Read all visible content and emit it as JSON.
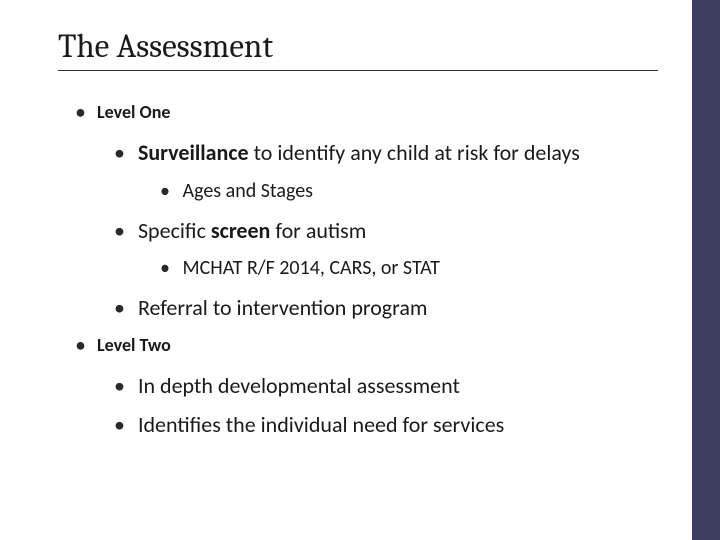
{
  "slide": {
    "title": "The Assessment",
    "title_color": "#1a1a1a",
    "title_fontsize": 33,
    "title_font": "Cambria",
    "body_font": "Calibri",
    "bullet_color": "#2a2a2a",
    "sidebar_color": "#3b3e5c",
    "background_color": "#ffffff",
    "underline_color": "#333333"
  },
  "level1_a": "Level One",
  "level2_a_bold": "Surveillance",
  "level2_a_rest": " to identify any child at risk for delays",
  "level3_a": " Ages and Stages",
  "level2_b_pre": "Specific ",
  "level2_b_bold": "screen",
  "level2_b_rest": " for autism",
  "level3_b": "MCHAT R/F 2014, CARS,  or STAT",
  "level2_c": "Referral to intervention program",
  "level1_b": "Level Two",
  "level2_d": "In depth developmental assessment",
  "level2_e": "Identifies  the individual need for services",
  "styles": {
    "lvl1_fontsize": 18,
    "lvl1_weight": 700,
    "lvl2_fontsize": 22,
    "lvl2_weight": 400,
    "lvl3_fontsize": 20,
    "lvl3_weight": 400,
    "lvl1_indent": 18,
    "lvl2_indent": 56,
    "lvl3_indent": 102
  }
}
